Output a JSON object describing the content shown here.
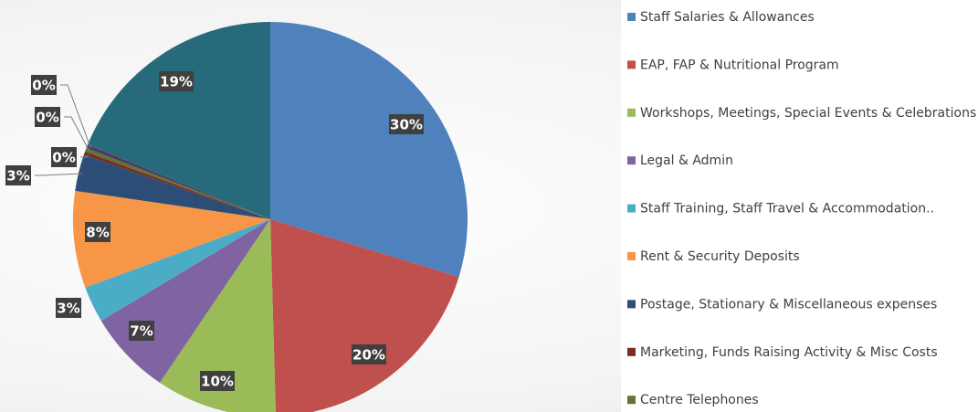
{
  "chart_data": {
    "type": "pie",
    "categories": [
      "Staff Salaries & Allowances",
      "EAP, FAP & Nutritional Program",
      "Workshops, Meetings, Special Events & Celebrations",
      "Legal & Admin",
      "Staff Training, Staff Travel & Accommodation..",
      "Rent & Security Deposits",
      "Postage, Stationary & Miscellaneous expenses",
      "Marketing, Funds Raising Activity & Misc Costs",
      "Centre Telephones",
      null,
      null
    ],
    "values": [
      30,
      20,
      10,
      7,
      3,
      8,
      3,
      0.3,
      0.3,
      0.3,
      19
    ],
    "value_labels": [
      "30%",
      "20%",
      "10%",
      "7%",
      "3%",
      "8%",
      "3%",
      "0%",
      "0%",
      "0%",
      "19%"
    ],
    "colors": [
      "#4f81bd",
      "#c0504d",
      "#9bbb59",
      "#8064a2",
      "#4bacc6",
      "#f79646",
      "#2c4d75",
      "#772c2a",
      "#5f7530",
      "#4d3b62",
      "#276a7c"
    ]
  }
}
